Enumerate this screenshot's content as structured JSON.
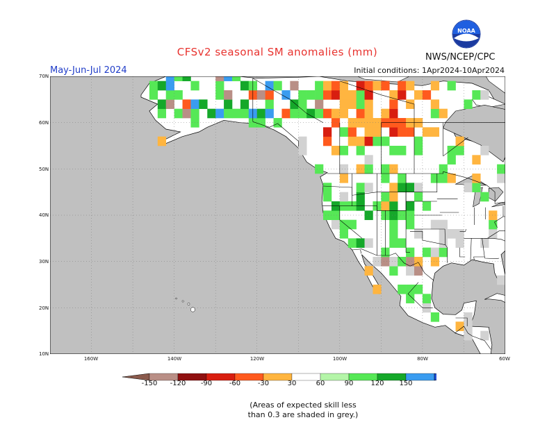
{
  "title": "CFSv2 seasonal SM anomalies (mm)",
  "period": "May-Jun-Jul 2024",
  "initial_conditions": "Initial conditions: 1Apr2024-10Apr2024",
  "agency": "NWS/NCEP/CPC",
  "logo_text": "NOAA",
  "lat_labels": [
    "70N",
    "60N",
    "50N",
    "40N",
    "30N",
    "20N",
    "10N"
  ],
  "lon_labels": [
    "160W",
    "140W",
    "120W",
    "100W",
    "80W",
    "60W"
  ],
  "colorbar": {
    "labels": [
      "-150",
      "-120",
      "-90",
      "-60",
      "-30",
      "30",
      "60",
      "90",
      "120",
      "150"
    ],
    "colors": [
      "#8a5a4c",
      "#b98f86",
      "#8f1010",
      "#d81e10",
      "#ff5a1e",
      "#ffb540",
      "#ffffff",
      "#b4f5a8",
      "#56e856",
      "#15a82a",
      "#3a9cf0",
      "#1f4fd8"
    ]
  },
  "note_line1": "(Areas of expected skill less",
  "note_line2": "than 0.3 are shaded in grey.)",
  "colors": {
    "ocean": "#c0c0c0",
    "land": "#ffffff",
    "low_skill": "#d2d2d2",
    "title": "#e8322e",
    "period": "#1f3cc8"
  }
}
